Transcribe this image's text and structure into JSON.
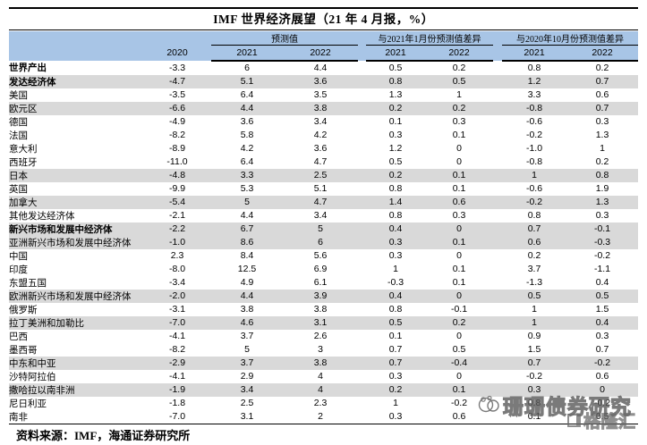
{
  "title": "IMF 世界经济展望（21 年 4 月报，%）",
  "source_note": "资料来源：IMF，海通证券研究所",
  "watermark": {
    "text": "珊珊债券研究",
    "logo_text": "格隆汇"
  },
  "colors": {
    "header_bg": "#a8c5e6",
    "shaded_row": "#d9d9d9",
    "rule": "#000000"
  },
  "chart_data": {
    "type": "table",
    "title": "IMF 世界经济展望（21 年 4 月报，%）",
    "column_2020_label": "2020",
    "groups": [
      {
        "label": "预测值",
        "years": [
          "2021",
          "2022"
        ]
      },
      {
        "label": "与2021年1月份预测值差异",
        "years": [
          "2021",
          "2022"
        ]
      },
      {
        "label": "与2020年10月份预测值差异",
        "years": [
          "2021",
          "2022"
        ]
      }
    ],
    "columns": [
      "2020",
      "预测值 2021",
      "预测值 2022",
      "与2021年1月份预测值差异 2021",
      "与2021年1月份预测值差异 2022",
      "与2020年10月份预测值差异 2021",
      "与2020年10月份预测值差异 2022"
    ],
    "rows": [
      {
        "label": "世界产出",
        "indent": 0,
        "bold": true,
        "shaded": false,
        "values": [
          "-3.3",
          "6",
          "4.4",
          "0.5",
          "0.2",
          "0.8",
          "0.2"
        ]
      },
      {
        "label": "发达经济体",
        "indent": 1,
        "bold": true,
        "shaded": true,
        "values": [
          "-4.7",
          "5.1",
          "3.6",
          "0.8",
          "0.5",
          "1.2",
          "0.7"
        ]
      },
      {
        "label": "美国",
        "indent": 1,
        "bold": false,
        "shaded": false,
        "values": [
          "-3.5",
          "6.4",
          "3.5",
          "1.3",
          "1",
          "3.3",
          "0.6"
        ]
      },
      {
        "label": "欧元区",
        "indent": 0,
        "bold": false,
        "shaded": true,
        "values": [
          "-6.6",
          "4.4",
          "3.8",
          "0.2",
          "0.2",
          "-0.8",
          "0.7"
        ]
      },
      {
        "label": "德国",
        "indent": 2,
        "bold": false,
        "shaded": false,
        "values": [
          "-4.9",
          "3.6",
          "3.4",
          "0.1",
          "0.3",
          "-0.6",
          "0.3"
        ]
      },
      {
        "label": "法国",
        "indent": 2,
        "bold": false,
        "shaded": false,
        "values": [
          "-8.2",
          "5.8",
          "4.2",
          "0.3",
          "0.1",
          "-0.2",
          "1.3"
        ]
      },
      {
        "label": "意大利",
        "indent": 2,
        "bold": false,
        "shaded": false,
        "values": [
          "-8.9",
          "4.2",
          "3.6",
          "1.2",
          "0",
          "-1.0",
          "1"
        ]
      },
      {
        "label": "西班牙",
        "indent": 2,
        "bold": false,
        "shaded": false,
        "values": [
          "-11.0",
          "6.4",
          "4.7",
          "0.5",
          "0",
          "-0.8",
          "0.2"
        ]
      },
      {
        "label": "日本",
        "indent": 1,
        "bold": false,
        "shaded": true,
        "values": [
          "-4.8",
          "3.3",
          "2.5",
          "0.2",
          "0.1",
          "1",
          "0.8"
        ]
      },
      {
        "label": "英国",
        "indent": 1,
        "bold": false,
        "shaded": false,
        "values": [
          "-9.9",
          "5.3",
          "5.1",
          "0.8",
          "0.1",
          "-0.6",
          "1.9"
        ]
      },
      {
        "label": "加拿大",
        "indent": 1,
        "bold": false,
        "shaded": true,
        "values": [
          "-5.4",
          "5",
          "4.7",
          "1.4",
          "0.6",
          "-0.2",
          "1.3"
        ]
      },
      {
        "label": "其他发达经济体",
        "indent": 1,
        "bold": false,
        "shaded": false,
        "values": [
          "-2.1",
          "4.4",
          "3.4",
          "0.8",
          "0.3",
          "0.8",
          "0.3"
        ]
      },
      {
        "label": "新兴市场和发展中经济体",
        "indent": 0,
        "bold": true,
        "shaded": true,
        "values": [
          "-2.2",
          "6.7",
          "5",
          "0.4",
          "0",
          "0.7",
          "-0.1"
        ]
      },
      {
        "label": "亚洲新兴市场和发展中经济体",
        "indent": 1,
        "bold": false,
        "shaded": true,
        "values": [
          "-1.0",
          "8.6",
          "6",
          "0.3",
          "0.1",
          "0.6",
          "-0.3"
        ]
      },
      {
        "label": "中国",
        "indent": 2,
        "bold": false,
        "shaded": false,
        "values": [
          "2.3",
          "8.4",
          "5.6",
          "0.3",
          "0",
          "0.2",
          "-0.2"
        ]
      },
      {
        "label": "印度",
        "indent": 2,
        "bold": false,
        "shaded": false,
        "values": [
          "-8.0",
          "12.5",
          "6.9",
          "1",
          "0.1",
          "3.7",
          "-1.1"
        ]
      },
      {
        "label": "东盟五国",
        "indent": 2,
        "bold": false,
        "shaded": false,
        "values": [
          "-3.4",
          "4.9",
          "6.1",
          "-0.3",
          "0.1",
          "-1.3",
          "0.4"
        ]
      },
      {
        "label": "欧洲新兴市场和发展中经济体",
        "indent": 1,
        "bold": false,
        "shaded": true,
        "values": [
          "-2.0",
          "4.4",
          "3.9",
          "0.4",
          "0",
          "0.5",
          "0.5"
        ]
      },
      {
        "label": "俄罗斯",
        "indent": 2,
        "bold": false,
        "shaded": false,
        "values": [
          "-3.1",
          "3.8",
          "3.8",
          "0.8",
          "-0.1",
          "1",
          "1.5"
        ]
      },
      {
        "label": "拉丁美洲和加勒比",
        "indent": 1,
        "bold": false,
        "shaded": true,
        "values": [
          "-7.0",
          "4.6",
          "3.1",
          "0.5",
          "0.2",
          "1",
          "0.4"
        ]
      },
      {
        "label": "巴西",
        "indent": 2,
        "bold": false,
        "shaded": false,
        "values": [
          "-4.1",
          "3.7",
          "2.6",
          "0.1",
          "0",
          "0.9",
          "0.3"
        ]
      },
      {
        "label": "墨西哥",
        "indent": 2,
        "bold": false,
        "shaded": false,
        "values": [
          "-8.2",
          "5",
          "3",
          "0.7",
          "0.5",
          "1.5",
          "0.7"
        ]
      },
      {
        "label": "中东和中亚",
        "indent": 1,
        "bold": false,
        "shaded": true,
        "values": [
          "-2.9",
          "3.7",
          "3.8",
          "0.7",
          "-0.4",
          "0.7",
          "-0.2"
        ]
      },
      {
        "label": "沙特阿拉伯",
        "indent": 2,
        "bold": false,
        "shaded": false,
        "values": [
          "-4.1",
          "2.9",
          "4",
          "0.3",
          "0",
          "-0.2",
          "0.6"
        ]
      },
      {
        "label": "撒哈拉以南非洲",
        "indent": 1,
        "bold": false,
        "shaded": true,
        "values": [
          "-1.9",
          "3.4",
          "4",
          "0.2",
          "0.1",
          "0.3",
          "0"
        ]
      },
      {
        "label": "尼日利亚",
        "indent": 2,
        "bold": false,
        "shaded": false,
        "values": [
          "-1.8",
          "2.5",
          "2.3",
          "1",
          "-0.2",
          "0.8",
          "-0.2"
        ]
      },
      {
        "label": "南非",
        "indent": 2,
        "bold": false,
        "shaded": false,
        "values": [
          "-7.0",
          "3.1",
          "2",
          "0.3",
          "0.6",
          "0.1",
          "0.5"
        ]
      }
    ]
  }
}
